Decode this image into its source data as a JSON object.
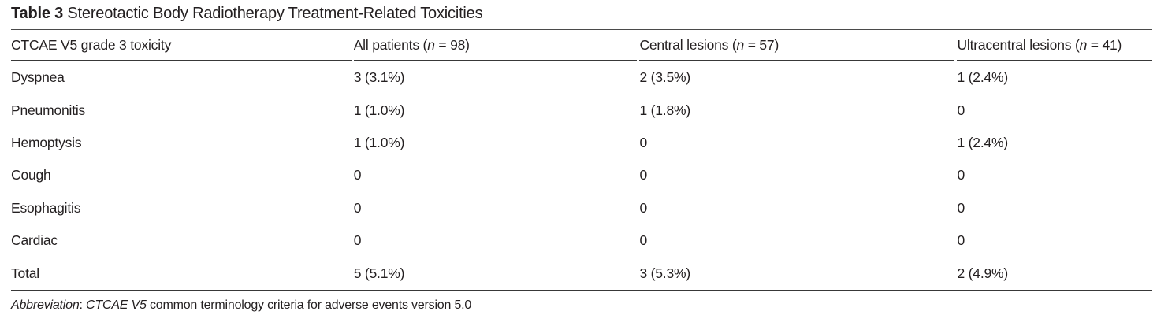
{
  "table": {
    "title": {
      "bold": "Table 3",
      "rest": " Stereotactic Body Radiotherapy Treatment-Related Toxicities"
    },
    "columns": [
      {
        "label": "CTCAE V5 grade 3 toxicity"
      },
      {
        "pre": "All patients (",
        "var": "n",
        "post": " = 98)"
      },
      {
        "pre": "Central lesions (",
        "var": "n",
        "post": " = 57)"
      },
      {
        "pre": "Ultracentral lesions (",
        "var": "n",
        "post": " = 41)"
      }
    ],
    "rows": [
      {
        "toxicity": "Dyspnea",
        "all_patients": "3 (3.1%)",
        "central": "2 (3.5%)",
        "ultracentral": "1 (2.4%)"
      },
      {
        "toxicity": "Pneumonitis",
        "all_patients": "1 (1.0%)",
        "central": "1 (1.8%)",
        "ultracentral": "0"
      },
      {
        "toxicity": "Hemoptysis",
        "all_patients": "1 (1.0%)",
        "central": "0",
        "ultracentral": "1 (2.4%)"
      },
      {
        "toxicity": "Cough",
        "all_patients": "0",
        "central": "0",
        "ultracentral": "0"
      },
      {
        "toxicity": "Esophagitis",
        "all_patients": "0",
        "central": "0",
        "ultracentral": "0"
      },
      {
        "toxicity": "Cardiac",
        "all_patients": "0",
        "central": "0",
        "ultracentral": "0"
      },
      {
        "toxicity": "Total",
        "all_patients": "5 (5.1%)",
        "central": "3 (5.3%)",
        "ultracentral": "2 (4.9%)"
      }
    ],
    "footnote": {
      "label_italic": "Abbreviation",
      "separator": ": ",
      "abbr_italic": "CTCAE V5",
      "rest": " common terminology criteria for adverse events version 5.0"
    }
  },
  "colors": {
    "text": "#231f20",
    "rule_dark": "#383838",
    "rule_title": "#4a4a4a",
    "background": "#ffffff"
  }
}
